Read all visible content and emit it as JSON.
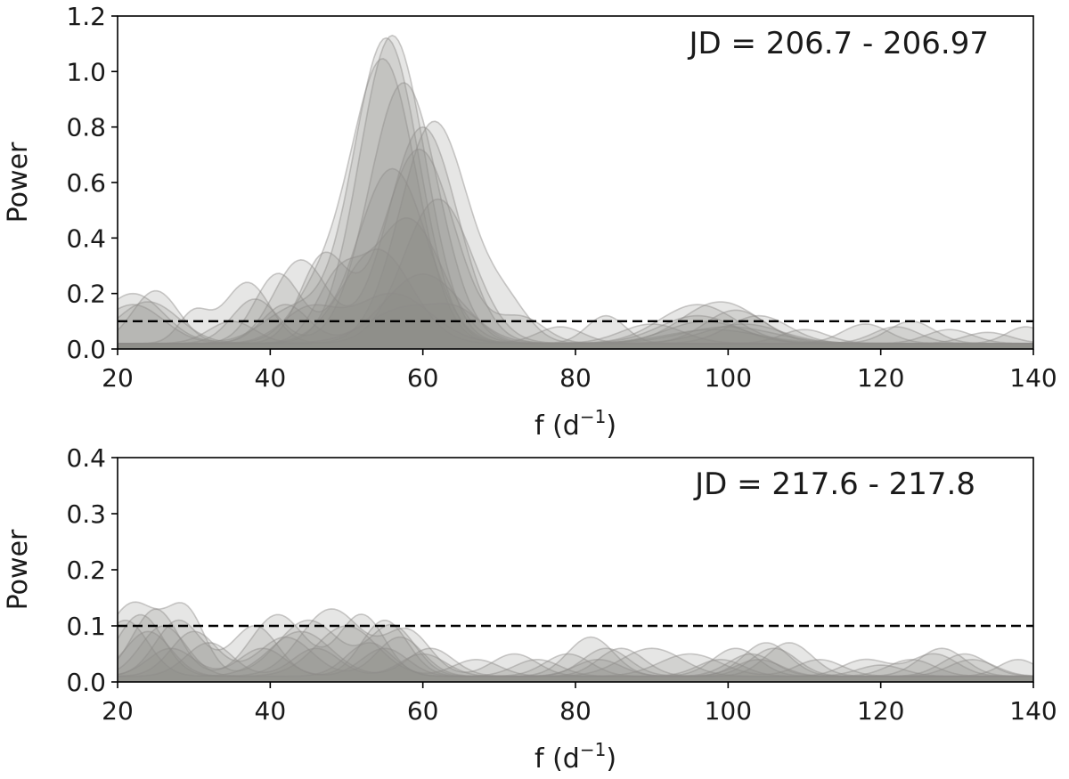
{
  "chart_data": [
    {
      "type": "area",
      "annotation": "JD = 206.7 - 206.97",
      "xlabel_base": "f (d",
      "xlabel_exp": "−1",
      "xlabel_close": ")",
      "ylabel": "Power",
      "xlim": [
        20,
        140
      ],
      "ylim": [
        0,
        1.2
      ],
      "xticks": [
        20,
        40,
        60,
        80,
        100,
        120,
        140
      ],
      "yticks": [
        "0.0",
        "0.2",
        "0.4",
        "0.6",
        "0.8",
        "1.0",
        "1.2"
      ],
      "threshold": 0.1,
      "fill_color": "#8f8c8a",
      "fill_opacity": 0.22,
      "series": [
        {
          "baseline": 0.02,
          "peaks": [
            [
              55.2,
              1.1,
              4.3
            ],
            [
              22,
              0.18,
              4
            ],
            [
              43,
              0.12,
              4
            ],
            [
              98,
              0.05,
              6
            ]
          ]
        },
        {
          "baseline": 0.02,
          "peaks": [
            [
              56,
              1.11,
              4.3
            ],
            [
              24,
              0.15,
              4
            ],
            [
              100,
              0.06,
              6
            ]
          ]
        },
        {
          "baseline": 0.02,
          "peaks": [
            [
              54.8,
              1.02,
              4.3
            ],
            [
              46,
              0.15,
              3.5
            ],
            [
              102,
              0.07,
              5
            ]
          ]
        },
        {
          "baseline": 0.02,
          "peaks": [
            [
              57.5,
              0.94,
              4.5
            ],
            [
              38,
              0.16,
              3
            ],
            [
              97,
              0.08,
              5
            ]
          ]
        },
        {
          "baseline": 0.02,
          "peaks": [
            [
              61.5,
              0.8,
              4.5
            ],
            [
              25,
              0.19,
              3
            ],
            [
              71,
              0.12,
              3
            ],
            [
              96,
              0.14,
              5
            ],
            [
              139,
              0.06,
              2.5
            ]
          ]
        },
        {
          "baseline": 0.02,
          "peaks": [
            [
              60,
              0.78,
              4.5
            ],
            [
              44,
              0.3,
              3.5
            ],
            [
              99,
              0.15,
              5
            ],
            [
              124,
              0.08,
              3
            ]
          ]
        },
        {
          "baseline": 0.02,
          "peaks": [
            [
              59.5,
              0.7,
              4.6
            ],
            [
              47,
              0.31,
              3
            ],
            [
              73,
              0.09,
              3
            ],
            [
              101,
              0.12,
              4
            ]
          ]
        },
        {
          "baseline": 0.02,
          "peaks": [
            [
              56,
              0.63,
              4.5
            ],
            [
              41,
              0.25,
              3
            ],
            [
              84,
              0.1,
              2.5
            ],
            [
              118,
              0.07,
              3
            ]
          ]
        },
        {
          "baseline": 0.02,
          "peaks": [
            [
              62,
              0.52,
              4.5
            ],
            [
              37,
              0.22,
              3
            ],
            [
              30,
              0.11,
              2
            ],
            [
              96,
              0.1,
              5
            ],
            [
              122,
              0.06,
              3
            ]
          ]
        },
        {
          "baseline": 0.02,
          "peaks": [
            [
              58,
              0.45,
              4.5
            ],
            [
              49,
              0.22,
              3
            ],
            [
              104,
              0.1,
              4
            ],
            [
              129,
              0.05,
              3
            ]
          ]
        },
        {
          "baseline": 0.02,
          "peaks": [
            [
              54,
              0.34,
              4.5
            ],
            [
              22,
              0.14,
              4
            ],
            [
              90,
              0.07,
              4
            ],
            [
              134,
              0.04,
              3
            ]
          ]
        },
        {
          "baseline": 0.02,
          "peaks": [
            [
              60,
              0.25,
              5
            ],
            [
              42,
              0.14,
              3
            ],
            [
              110,
              0.05,
              3
            ]
          ]
        },
        {
          "baseline": 0.02,
          "peaks": [
            [
              56,
              0.18,
              5
            ],
            [
              45,
              0.12,
              3.5
            ],
            [
              78,
              0.06,
              3
            ]
          ]
        },
        {
          "baseline": 0.02,
          "peaks": [
            [
              58,
              0.13,
              5
            ],
            [
              35,
              0.08,
              3
            ],
            [
              65,
              0.08,
              3
            ]
          ]
        }
      ]
    },
    {
      "type": "area",
      "annotation": "JD = 217.6 - 217.8",
      "xlabel_base": "f (d",
      "xlabel_exp": "−1",
      "xlabel_close": ")",
      "ylabel": "Power",
      "xlim": [
        20,
        140
      ],
      "ylim": [
        0,
        0.4
      ],
      "xticks": [
        20,
        40,
        60,
        80,
        100,
        120,
        140
      ],
      "yticks": [
        "0.0",
        "0.1",
        "0.2",
        "0.3",
        "0.4"
      ],
      "threshold": 0.1,
      "fill_color": "#8f8c8a",
      "fill_opacity": 0.22,
      "series": [
        {
          "baseline": 0.01,
          "peaks": [
            [
              22,
              0.13,
              3.5
            ],
            [
              29,
              0.11,
              2.5
            ],
            [
              45,
              0.1,
              4
            ],
            [
              56,
              0.09,
              3
            ],
            [
              82,
              0.07,
              3
            ],
            [
              105,
              0.06,
              3
            ],
            [
              128,
              0.05,
              3
            ]
          ]
        },
        {
          "baseline": 0.01,
          "peaks": [
            [
              25,
              0.12,
              3
            ],
            [
              41,
              0.11,
              3.5
            ],
            [
              52,
              0.11,
              3
            ],
            [
              84,
              0.05,
              3
            ],
            [
              101,
              0.05,
              3
            ],
            [
              131,
              0.04,
              3
            ]
          ]
        },
        {
          "baseline": 0.01,
          "peaks": [
            [
              23,
              0.11,
              3
            ],
            [
              48,
              0.12,
              4
            ],
            [
              58,
              0.08,
              3
            ],
            [
              72,
              0.04,
              3
            ],
            [
              108,
              0.06,
              3
            ],
            [
              138,
              0.03,
              2.5
            ]
          ]
        },
        {
          "baseline": 0.01,
          "peaks": [
            [
              28,
              0.1,
              3
            ],
            [
              38,
              0.09,
              3
            ],
            [
              55,
              0.1,
              3
            ],
            [
              90,
              0.05,
              4
            ],
            [
              118,
              0.03,
              3
            ],
            [
              127,
              0.04,
              3
            ]
          ]
        },
        {
          "baseline": 0.01,
          "peaks": [
            [
              21,
              0.1,
              3
            ],
            [
              44,
              0.08,
              4
            ],
            [
              61,
              0.05,
              3
            ],
            [
              79,
              0.04,
              3
            ],
            [
              103,
              0.04,
              3
            ],
            [
              124,
              0.03,
              3
            ]
          ]
        },
        {
          "baseline": 0.01,
          "peaks": [
            [
              26,
              0.09,
              3
            ],
            [
              50,
              0.09,
              4
            ],
            [
              67,
              0.03,
              3
            ],
            [
              95,
              0.04,
              4
            ],
            [
              112,
              0.03,
              3
            ]
          ]
        },
        {
          "baseline": 0.01,
          "peaks": [
            [
              30,
              0.08,
              3
            ],
            [
              42,
              0.07,
              3.5
            ],
            [
              57,
              0.07,
              3
            ],
            [
              86,
              0.05,
              3
            ],
            [
              106,
              0.05,
              3
            ]
          ]
        },
        {
          "baseline": 0.01,
          "peaks": [
            [
              24,
              0.08,
              3
            ],
            [
              53,
              0.06,
              3
            ],
            [
              75,
              0.03,
              3
            ],
            [
              99,
              0.03,
              3
            ],
            [
              132,
              0.03,
              3
            ]
          ]
        },
        {
          "baseline": 0.01,
          "peaks": [
            [
              32,
              0.06,
              3
            ],
            [
              46,
              0.05,
              3
            ],
            [
              60,
              0.04,
              3
            ],
            [
              83,
              0.03,
              3
            ],
            [
              120,
              0.02,
              3
            ]
          ]
        },
        {
          "baseline": 0.01,
          "peaks": [
            [
              27,
              0.05,
              3
            ],
            [
              39,
              0.05,
              3
            ],
            [
              55,
              0.05,
              3
            ],
            [
              104,
              0.03,
              3
            ]
          ]
        }
      ]
    }
  ]
}
